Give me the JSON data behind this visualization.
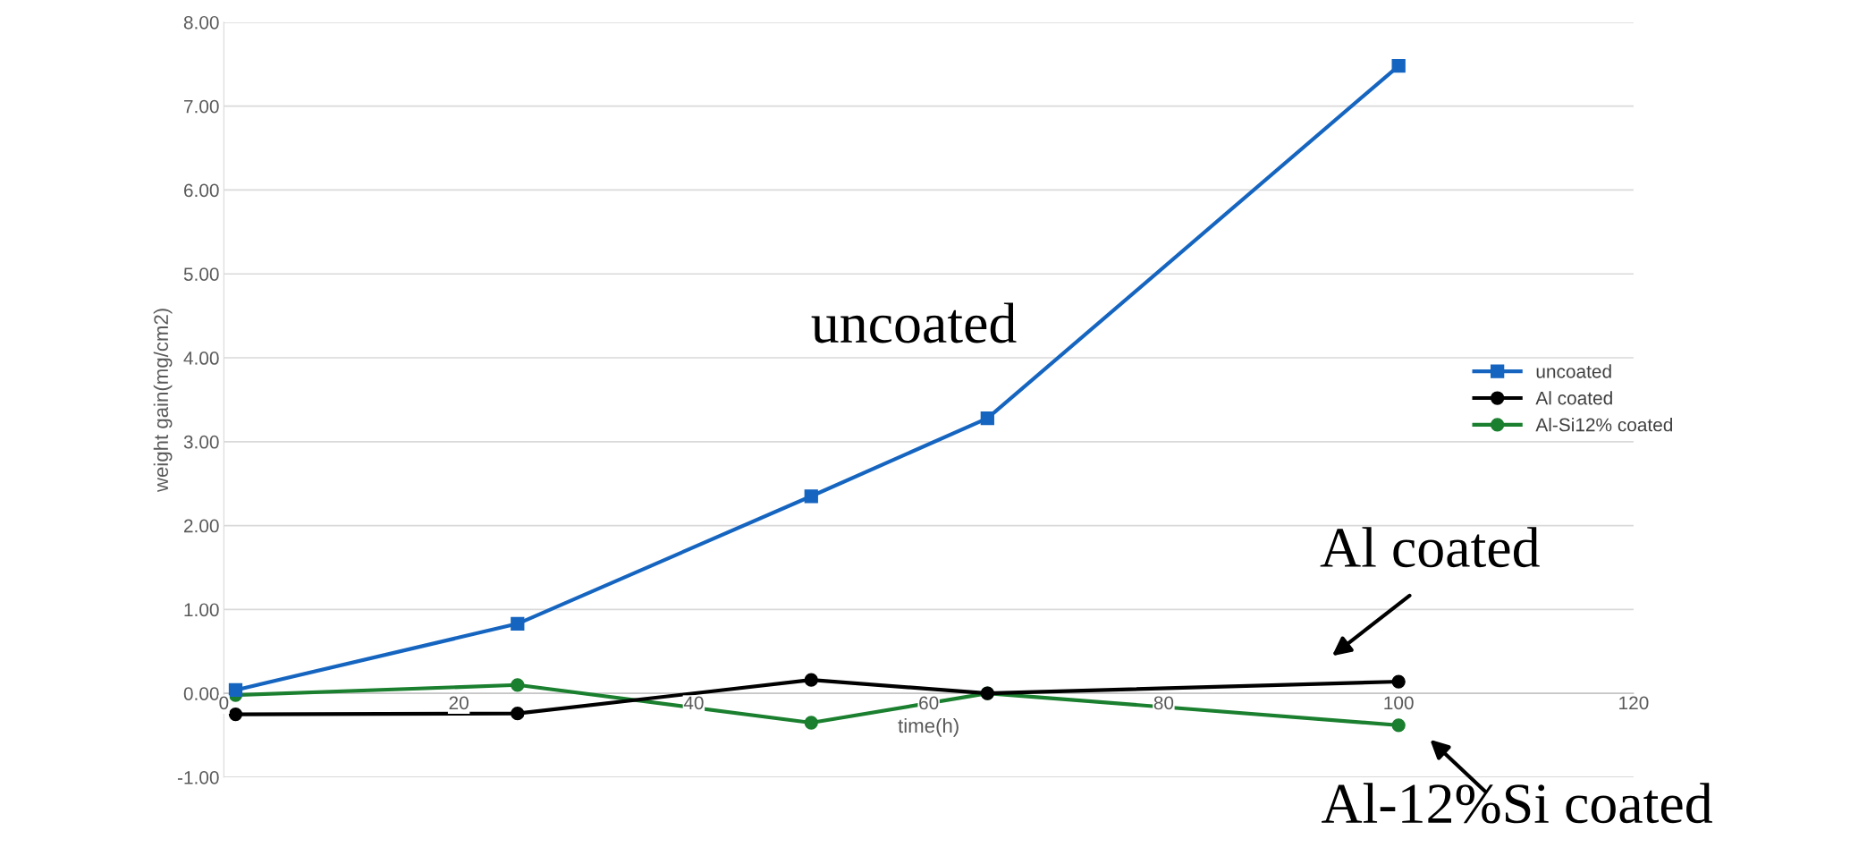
{
  "chart_data": {
    "type": "line",
    "xlabel": "time(h)",
    "ylabel": "weight gain(mg/cm2)",
    "xlim": [
      0,
      120
    ],
    "xticks": [
      0,
      20,
      40,
      60,
      80,
      100,
      120
    ],
    "ylim": [
      -1,
      8
    ],
    "yticks": [
      {
        "value": -1,
        "label": "-1.00"
      },
      {
        "value": 0,
        "label": "0.00"
      },
      {
        "value": 1,
        "label": "1.00"
      },
      {
        "value": 2,
        "label": "2.00"
      },
      {
        "value": 3,
        "label": "3.00"
      },
      {
        "value": 4,
        "label": "4.00"
      },
      {
        "value": 5,
        "label": "5.00"
      },
      {
        "value": 6,
        "label": "6.00"
      },
      {
        "value": 7,
        "label": "7.00"
      },
      {
        "value": 8,
        "label": "8.00"
      }
    ],
    "grid": "y",
    "legend": "right",
    "line_style": "solid",
    "x": [
      1,
      25,
      50,
      65,
      100
    ],
    "series": [
      {
        "name": "uncoated",
        "color": "#1565c0",
        "marker": "square",
        "values": [
          0.04,
          0.83,
          2.35,
          3.28,
          7.48
        ]
      },
      {
        "name": "Al coated",
        "color": "#000000",
        "marker": "circle",
        "values": [
          -0.25,
          -0.24,
          0.16,
          0.0,
          0.14
        ]
      },
      {
        "name": "Al-Si12% coated",
        "color": "#1a7f2e",
        "marker": "circle",
        "values": [
          -0.02,
          0.1,
          -0.35,
          0.0,
          -0.38
        ]
      }
    ],
    "annotations": [
      "uncoated",
      "Al coated",
      "Al-12%Si coated"
    ]
  }
}
